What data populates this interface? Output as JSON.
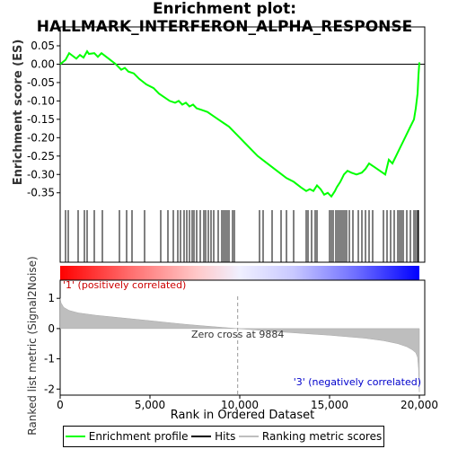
{
  "title_line1": "Enrichment plot:",
  "title_line2": "HALLMARK_INTERFERON_ALPHA_RESPONSE",
  "chart_data": {
    "type": "line",
    "es_panel": {
      "ylabel": "Enrichment score (ES)",
      "ylim": [
        -0.38,
        0.05
      ],
      "yticks": [
        0.05,
        0.0,
        -0.05,
        -0.1,
        -0.15,
        -0.2,
        -0.25,
        -0.3,
        -0.35
      ],
      "ytick_labels": [
        "0.05",
        "0.00",
        "-0.05",
        "-0.10",
        "-0.15",
        "-0.20",
        "-0.25",
        "-0.30",
        "-0.35"
      ],
      "series": [
        {
          "name": "Enrichment profile",
          "color": "#00ff00",
          "x": [
            0,
            300,
            500,
            900,
            1100,
            1300,
            1500,
            1600,
            1900,
            2100,
            2300,
            2700,
            3100,
            3400,
            3600,
            3800,
            4100,
            4400,
            4800,
            5200,
            5500,
            5800,
            6100,
            6400,
            6600,
            6800,
            7000,
            7200,
            7400,
            7600,
            7900,
            8200,
            8500,
            8800,
            9100,
            9400,
            9700,
            10000,
            10300,
            10700,
            11000,
            11400,
            11800,
            12200,
            12600,
            13000,
            13400,
            13700,
            13900,
            14100,
            14300,
            14500,
            14700,
            14900,
            15100,
            15300,
            15400,
            15600,
            15800,
            16000,
            16200,
            16500,
            16800,
            17000,
            17200,
            17500,
            17800,
            18100,
            18300,
            18500,
            18700,
            18900,
            19100,
            19300,
            19500,
            19700,
            19800,
            19900,
            19950,
            20000
          ],
          "y": [
            0.0,
            0.012,
            0.03,
            0.015,
            0.025,
            0.018,
            0.035,
            0.028,
            0.03,
            0.02,
            0.03,
            0.015,
            0.0,
            -0.015,
            -0.01,
            -0.02,
            -0.025,
            -0.04,
            -0.055,
            -0.065,
            -0.08,
            -0.09,
            -0.1,
            -0.105,
            -0.1,
            -0.11,
            -0.105,
            -0.115,
            -0.11,
            -0.12,
            -0.125,
            -0.13,
            -0.14,
            -0.15,
            -0.16,
            -0.17,
            -0.185,
            -0.2,
            -0.215,
            -0.235,
            -0.25,
            -0.265,
            -0.28,
            -0.295,
            -0.31,
            -0.32,
            -0.335,
            -0.345,
            -0.34,
            -0.345,
            -0.33,
            -0.34,
            -0.355,
            -0.35,
            -0.36,
            -0.345,
            -0.335,
            -0.32,
            -0.3,
            -0.29,
            -0.295,
            -0.3,
            -0.295,
            -0.285,
            -0.27,
            -0.28,
            -0.29,
            -0.3,
            -0.26,
            -0.27,
            -0.25,
            -0.23,
            -0.21,
            -0.19,
            -0.17,
            -0.15,
            -0.12,
            -0.08,
            -0.03,
            0.005
          ]
        }
      ]
    },
    "hits": {
      "name": "Hits",
      "color": "#000000",
      "x": [
        300,
        450,
        1000,
        1350,
        1500,
        1900,
        2350,
        3300,
        3700,
        4000,
        4700,
        5600,
        6000,
        6300,
        6550,
        6700,
        6900,
        7050,
        7200,
        7350,
        7450,
        7600,
        7800,
        8000,
        8100,
        8250,
        8400,
        8550,
        8800,
        9000,
        9100,
        9200,
        9300,
        9400,
        9600,
        9700,
        11100,
        11300,
        11800,
        12300,
        12600,
        13000,
        13700,
        13800,
        14000,
        14200,
        14300,
        15000,
        15100,
        15200,
        15350,
        15450,
        15550,
        15650,
        15750,
        15850,
        15950,
        16100,
        16300,
        16600,
        16800,
        17000,
        17200,
        17400,
        18000,
        18200,
        18400,
        18600,
        18800,
        18900,
        19000,
        19100,
        19300,
        19500,
        19700,
        19800,
        19900,
        19950
      ]
    },
    "metric_panel": {
      "ylabel": "Ranked list metric (Signal2Noise)",
      "ylim": [
        -2.2,
        1.6
      ],
      "yticks": [
        1,
        0,
        -1,
        -2
      ],
      "ytick_labels": [
        "1",
        "0",
        "-1",
        "-2"
      ],
      "series": [
        {
          "name": "Ranking metric scores",
          "color": "#bebebe",
          "x": [
            0,
            50,
            200,
            500,
            1000,
            2000,
            3000,
            4000,
            5000,
            6000,
            7000,
            8000,
            9000,
            9884,
            11000,
            12000,
            13000,
            14000,
            15000,
            16000,
            17000,
            18000,
            18800,
            19300,
            19600,
            19800,
            19900,
            19950,
            20000
          ],
          "y": [
            1.0,
            0.85,
            0.7,
            0.6,
            0.52,
            0.44,
            0.38,
            0.32,
            0.26,
            0.2,
            0.14,
            0.09,
            0.04,
            0.0,
            -0.05,
            -0.1,
            -0.14,
            -0.18,
            -0.22,
            -0.27,
            -0.32,
            -0.4,
            -0.5,
            -0.6,
            -0.7,
            -0.8,
            -0.95,
            -1.3,
            -2.1
          ]
        }
      ],
      "annotations": {
        "pos_label": "'1' (positively correlated)",
        "neg_label": "'3' (negatively correlated)",
        "zero_cross": "Zero cross at 9884",
        "zero_cross_x": 9884
      }
    },
    "xaxis": {
      "xlabel": "Rank in Ordered Dataset",
      "xlim": [
        0,
        20300
      ],
      "xticks": [
        0,
        5000,
        10000,
        15000,
        20000
      ],
      "xtick_labels": [
        "0",
        "5,000",
        "10,000",
        "15,000",
        "20,000"
      ]
    },
    "colorbar": {
      "stops": [
        {
          "pos": 0.0,
          "color": "#ff0000"
        },
        {
          "pos": 0.2,
          "color": "#ff7070"
        },
        {
          "pos": 0.38,
          "color": "#ffc8c8"
        },
        {
          "pos": 0.5,
          "color": "#f0f0ff"
        },
        {
          "pos": 0.65,
          "color": "#c8c8ff"
        },
        {
          "pos": 0.82,
          "color": "#7070ff"
        },
        {
          "pos": 1.0,
          "color": "#0000ff"
        }
      ]
    }
  },
  "legend": {
    "profile": "Enrichment profile",
    "hits": "Hits",
    "metric": "Ranking metric scores"
  }
}
